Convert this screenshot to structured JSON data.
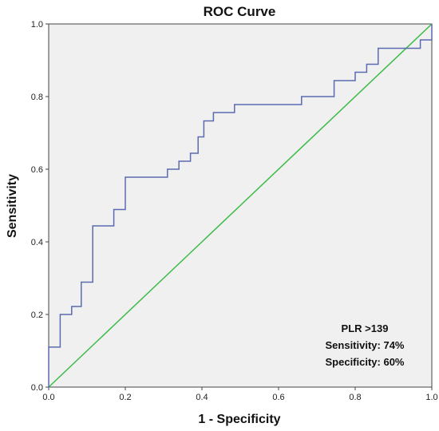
{
  "chart_data": {
    "type": "line",
    "title": "ROC Curve",
    "xlabel": "1 - Specificity",
    "ylabel": "Sensitivity",
    "xlim": [
      0,
      1
    ],
    "ylim": [
      0,
      1
    ],
    "x_ticks": [
      "0.0",
      "0.2",
      "0.4",
      "0.6",
      "0.8",
      "1.0"
    ],
    "y_ticks": [
      "0.0",
      "0.2",
      "0.4",
      "0.6",
      "0.8",
      "1.0"
    ],
    "grid": false,
    "plot_background": "#f0f0f0",
    "series": [
      {
        "color": "#5b6bb0",
        "x": [
          0.0,
          0.0,
          0.03,
          0.03,
          0.06,
          0.06,
          0.085,
          0.085,
          0.115,
          0.115,
          0.17,
          0.17,
          0.2,
          0.2,
          0.31,
          0.31,
          0.34,
          0.34,
          0.37,
          0.37,
          0.39,
          0.39,
          0.405,
          0.405,
          0.43,
          0.43,
          0.485,
          0.485,
          0.66,
          0.66,
          0.745,
          0.745,
          0.8,
          0.8,
          0.83,
          0.83,
          0.86,
          0.86,
          0.97,
          0.97,
          1.0,
          1.0
        ],
        "y": [
          0.0,
          0.11,
          0.11,
          0.2,
          0.2,
          0.222,
          0.222,
          0.289,
          0.289,
          0.444,
          0.444,
          0.489,
          0.489,
          0.578,
          0.578,
          0.6,
          0.6,
          0.622,
          0.622,
          0.644,
          0.644,
          0.689,
          0.689,
          0.733,
          0.733,
          0.756,
          0.756,
          0.778,
          0.778,
          0.8,
          0.8,
          0.844,
          0.844,
          0.867,
          0.867,
          0.889,
          0.889,
          0.933,
          0.933,
          0.956,
          0.956,
          1.0
        ]
      },
      {
        "color": "#3dbb4a",
        "x": [
          0,
          1
        ],
        "y": [
          0,
          1
        ]
      }
    ],
    "annotations": [
      "PLR >139",
      "Sensitivity: 74%",
      "Specificity: 60%"
    ],
    "annotation_placement": "bottom-right"
  }
}
